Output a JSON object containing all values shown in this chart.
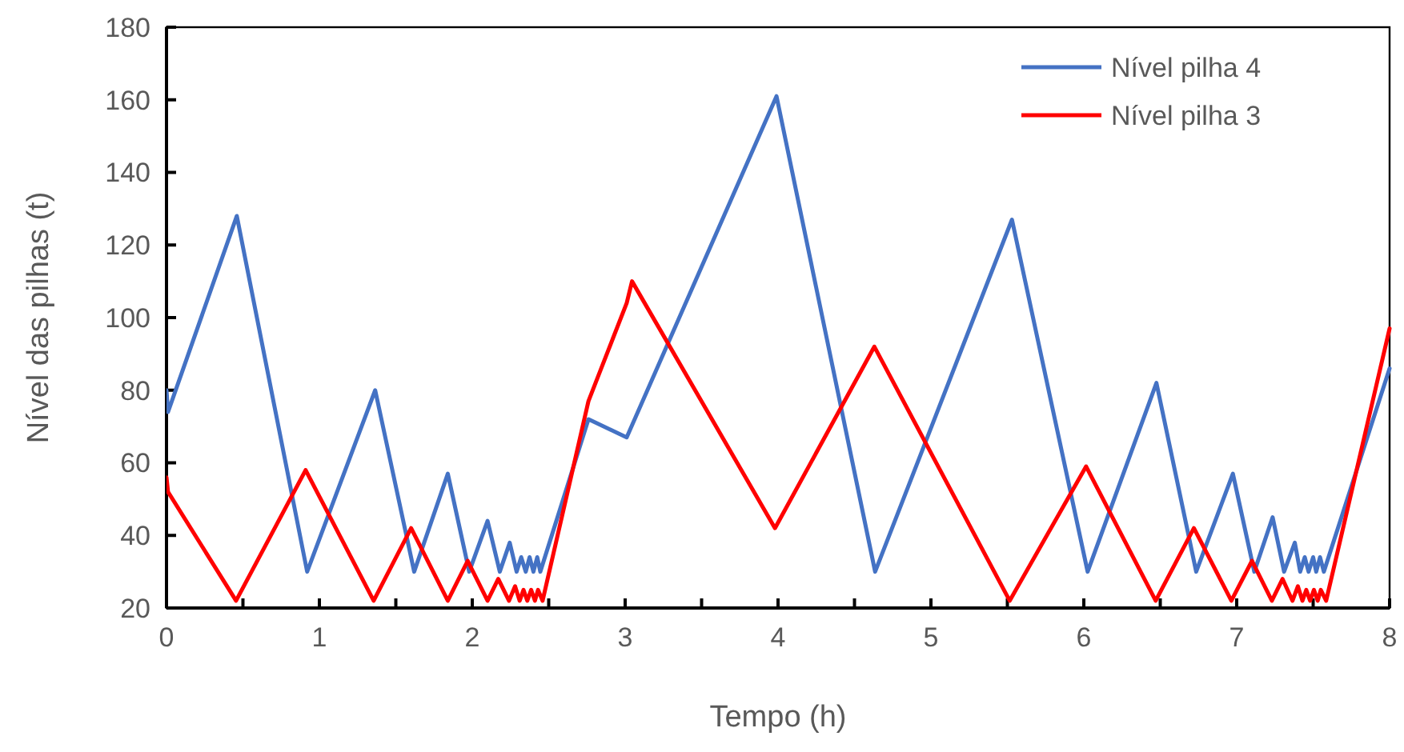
{
  "chart_data": {
    "type": "line",
    "xlabel": "Tempo (h)",
    "ylabel": "Nível das pilhas  (t)",
    "xlim": [
      0,
      8
    ],
    "ylim": [
      20,
      180
    ],
    "xticks": [
      0,
      {
        "value": 0.5,
        "label": null
      },
      1,
      {
        "value": 1.5,
        "label": null
      },
      2,
      {
        "value": 2.5,
        "label": null
      },
      3,
      {
        "value": 3.5,
        "label": null
      },
      4,
      {
        "value": 4.5,
        "label": null
      },
      5,
      {
        "value": 5.5,
        "label": null
      },
      6,
      {
        "value": 6.5,
        "label": null
      },
      7,
      {
        "value": 7.5,
        "label": null
      },
      8
    ],
    "yticks": [
      20,
      40,
      60,
      80,
      100,
      120,
      140,
      160,
      180
    ],
    "grid": false,
    "legend": "top right",
    "marker": "none",
    "line_style": "solid",
    "series": [
      {
        "name": "Nível pilha 4",
        "color": "#4472c4",
        "x": [
          0,
          0.01,
          0.46,
          0.92,
          1.365,
          1.62,
          1.84,
          1.98,
          2.1,
          2.18,
          2.245,
          2.29,
          2.32,
          2.35,
          2.375,
          2.4,
          2.425,
          2.445,
          2.76,
          3.01,
          3.99,
          4.635,
          5.53,
          6.025,
          6.475,
          6.735,
          6.975,
          7.115,
          7.235,
          7.31,
          7.38,
          7.415,
          7.445,
          7.47,
          7.5,
          7.52,
          7.545,
          7.57,
          8
        ],
        "values": [
          80,
          74,
          128,
          30,
          80,
          30,
          57,
          30,
          44,
          30,
          38,
          30,
          34,
          30,
          34,
          30,
          34,
          30,
          72,
          67,
          161,
          30,
          127,
          30,
          82,
          30,
          57,
          30,
          45,
          30,
          38,
          30,
          34,
          30,
          34,
          30,
          34,
          30,
          86
        ]
      },
      {
        "name": "Nível pilha 3",
        "color": "#ff0000",
        "x": [
          0,
          0.01,
          0.455,
          0.91,
          1.355,
          1.6,
          1.84,
          1.97,
          2.1,
          2.17,
          2.24,
          2.28,
          2.31,
          2.335,
          2.36,
          2.385,
          2.41,
          2.43,
          2.46,
          2.76,
          3.01,
          3.045,
          3.98,
          4.63,
          5.515,
          6.015,
          6.47,
          6.72,
          6.965,
          7.1,
          7.23,
          7.3,
          7.365,
          7.4,
          7.43,
          7.455,
          7.48,
          7.505,
          7.53,
          7.55,
          7.585,
          8
        ],
        "values": [
          56,
          52,
          22,
          58,
          22,
          42,
          22,
          33,
          22,
          28,
          22,
          26,
          22,
          25,
          22,
          25,
          22,
          25,
          22,
          77,
          104,
          110,
          42,
          92,
          22,
          59,
          22,
          42,
          22,
          33,
          22,
          28,
          22,
          26,
          22,
          25,
          22,
          25,
          22,
          25,
          22,
          97
        ]
      }
    ]
  }
}
